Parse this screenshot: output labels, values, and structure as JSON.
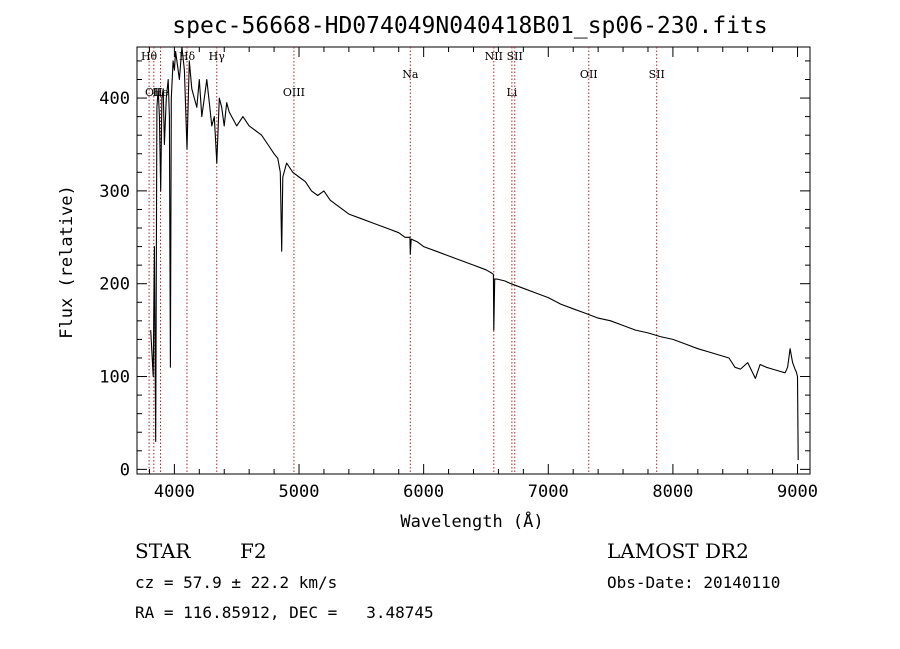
{
  "chart_data": {
    "type": "line",
    "title": "spec-56668-HD074049N040418B01_sp06-230.fits",
    "xlabel": "Wavelength (Å)",
    "ylabel": "Flux (relative)",
    "xlim": [
      3700,
      9100
    ],
    "ylim": [
      -5,
      455
    ],
    "xticks": [
      4000,
      5000,
      6000,
      7000,
      8000,
      9000
    ],
    "yticks": [
      0,
      100,
      200,
      300,
      400
    ],
    "series": [
      {
        "values_x": [
          3810,
          3830,
          3840,
          3850,
          3860,
          3870,
          3880,
          3890,
          3900,
          3910,
          3920,
          3935,
          3950,
          3960,
          3968,
          3975,
          3990,
          4000,
          4010,
          4020,
          4040,
          4060,
          4080,
          4101,
          4120,
          4140,
          4160,
          4180,
          4200,
          4220,
          4240,
          4260,
          4280,
          4300,
          4320,
          4340,
          4360,
          4380,
          4400,
          4420,
          4440,
          4460,
          4480,
          4500,
          4550,
          4600,
          4650,
          4700,
          4750,
          4800,
          4830,
          4850,
          4861,
          4870,
          4900,
          4950,
          5000,
          5050,
          5100,
          5150,
          5200,
          5250,
          5300,
          5400,
          5500,
          5600,
          5700,
          5800,
          5850,
          5890,
          5893,
          5900,
          5950,
          6000,
          6100,
          6200,
          6300,
          6400,
          6500,
          6540,
          6560,
          6563,
          6570,
          6590,
          6650,
          6700,
          6800,
          6900,
          7000,
          7100,
          7200,
          7300,
          7400,
          7500,
          7600,
          7700,
          7800,
          7900,
          8000,
          8100,
          8200,
          8300,
          8400,
          8450,
          8498,
          8542,
          8600,
          8662,
          8700,
          8750,
          8800,
          8850,
          8900,
          8920,
          8940,
          8960,
          8980,
          8990,
          9000,
          9005
        ],
        "values_y": [
          150,
          100,
          240,
          30,
          390,
          410,
          380,
          300,
          400,
          410,
          350,
          400,
          420,
          380,
          110,
          400,
          440,
          430,
          450,
          440,
          420,
          460,
          430,
          345,
          440,
          410,
          400,
          390,
          420,
          380,
          400,
          420,
          395,
          370,
          380,
          330,
          400,
          390,
          370,
          395,
          385,
          380,
          375,
          370,
          380,
          370,
          365,
          360,
          350,
          340,
          335,
          320,
          235,
          315,
          330,
          320,
          315,
          310,
          300,
          295,
          300,
          290,
          285,
          275,
          270,
          265,
          260,
          255,
          250,
          250,
          232,
          248,
          245,
          240,
          235,
          230,
          225,
          220,
          215,
          212,
          210,
          150,
          205,
          205,
          203,
          200,
          195,
          190,
          185,
          178,
          173,
          168,
          163,
          160,
          155,
          150,
          147,
          143,
          140,
          135,
          130,
          126,
          122,
          120,
          110,
          108,
          115,
          98,
          113,
          110,
          108,
          106,
          104,
          110,
          130,
          115,
          108,
          105,
          100,
          10
        ]
      }
    ],
    "lines": [
      {
        "x": 3797,
        "label": "Hθ",
        "row": "top"
      },
      {
        "x": 3835,
        "label": "OII",
        "row": "mid"
      },
      {
        "x": 3889,
        "label": "He",
        "row": "mid"
      },
      {
        "x": 4101,
        "label": "Hδ",
        "row": "top"
      },
      {
        "x": 4340,
        "label": "Hγ",
        "row": "top"
      },
      {
        "x": 4959,
        "label": "OIII",
        "row": "mid"
      },
      {
        "x": 5893,
        "label": "Na",
        "row": "low"
      },
      {
        "x": 6563,
        "label": "NII",
        "row": "top"
      },
      {
        "x": 6708,
        "label": "Li",
        "row": "mid"
      },
      {
        "x": 6731,
        "label": "SII",
        "row": "top"
      },
      {
        "x": 7325,
        "label": "OII",
        "row": "low"
      },
      {
        "x": 7870,
        "label": "SII",
        "row": "low"
      }
    ]
  },
  "info": {
    "object_class": "STAR",
    "subclass": "F2",
    "survey": "LAMOST DR2",
    "cz": "cz = 57.9 ± 22.2 km/s",
    "coords": "RA = 116.85912, DEC =   3.48745",
    "obs_date": "Obs-Date: 20140110"
  },
  "colors": {
    "line": "#000000",
    "marker": "#b22222"
  }
}
